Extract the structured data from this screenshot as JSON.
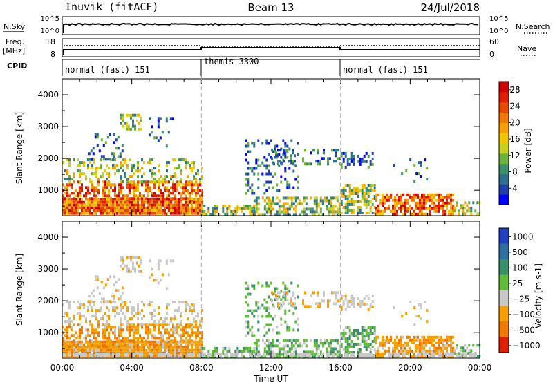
{
  "header": {
    "station": "Inuvik (fitACF)",
    "beam": "Beam 13",
    "date": "24/Jul/2018"
  },
  "side_labels": {
    "nsky": "N.Sky",
    "freq": "Freq.",
    "freq_unit": "[MHz]",
    "cpid": "CPID",
    "nsearch": "N.Search",
    "nave": "Nave"
  },
  "cpid_segments": [
    "normal (fast) 151",
    "themis 3300",
    "normal (fast) 151"
  ],
  "top_strip": {
    "nsky_ticks": [
      "10^5",
      "10^0"
    ],
    "nsearch_ticks": [
      "10^5",
      "10^0"
    ],
    "freq_ticks": [
      "18",
      "8"
    ],
    "nave_ticks": [
      "60",
      "0"
    ]
  },
  "colors": {
    "power": [
      "#0000ff",
      "#1f3fa8",
      "#2f6f8a",
      "#3c8f6a",
      "#6cb23a",
      "#c8d21e",
      "#f0c800",
      "#f5a000",
      "#f07800",
      "#e84800",
      "#e01e00",
      "#d00000"
    ],
    "velocity": [
      "#2040c0",
      "#2f6fa0",
      "#3a8f6a",
      "#5fba3a",
      "#c8c8c8",
      "#f5a000",
      "#f07800",
      "#e01e00"
    ]
  },
  "chart_data": [
    {
      "type": "heatmap",
      "panel": "power",
      "ylabel": "Slant Range [km]",
      "x_ticks": [
        "00:00",
        "04:00",
        "08:00",
        "12:00",
        "16:00",
        "20:00",
        "00:00"
      ],
      "y_ticks": [
        "1000",
        "2000",
        "3000",
        "4000"
      ],
      "ylim": [
        200,
        4500
      ],
      "colorbar_label": "Power [dB]",
      "colorbar_ticks": [
        "28",
        "24",
        "20",
        "16",
        "12",
        "8",
        "4"
      ],
      "clim": [
        0,
        30
      ]
    },
    {
      "type": "heatmap",
      "panel": "velocity",
      "ylabel": "Slant Range [km]",
      "xlabel": "Time UT",
      "x_ticks": [
        "00:00",
        "04:00",
        "08:00",
        "12:00",
        "16:00",
        "20:00",
        "00:00"
      ],
      "y_ticks": [
        "1000",
        "2000",
        "3000",
        "4000"
      ],
      "ylim": [
        200,
        4500
      ],
      "colorbar_label": "Velocity [m s-1]",
      "colorbar_ticks": [
        "1000",
        "500",
        "100",
        "25",
        "−25",
        "−100",
        "−500",
        "−1000"
      ]
    }
  ]
}
